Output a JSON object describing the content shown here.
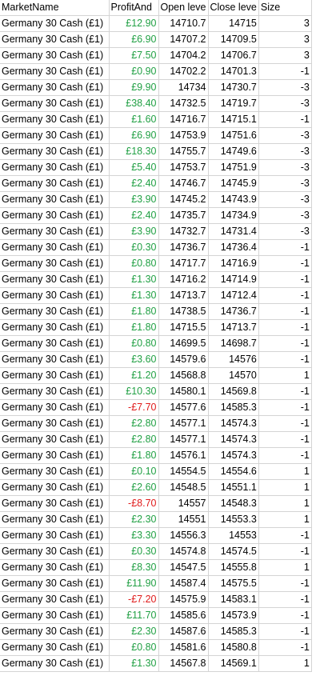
{
  "headers": [
    "MarketName",
    "ProfitAnd",
    "Open leve",
    "Close leve",
    "Size"
  ],
  "colors": {
    "positive": "#21a044",
    "negative": "#e01b1b",
    "text": "#000000",
    "grid": "#d4d4d4"
  },
  "rows": [
    [
      "Germany 30 Cash (£1)",
      "£12.90",
      "14710.7",
      "14715",
      "3"
    ],
    [
      "Germany 30 Cash (£1)",
      "£6.90",
      "14707.2",
      "14709.5",
      "3"
    ],
    [
      "Germany 30 Cash (£1)",
      "£7.50",
      "14704.2",
      "14706.7",
      "3"
    ],
    [
      "Germany 30 Cash (£1)",
      "£0.90",
      "14702.2",
      "14701.3",
      "-1"
    ],
    [
      "Germany 30 Cash (£1)",
      "£9.90",
      "14734",
      "14730.7",
      "-3"
    ],
    [
      "Germany 30 Cash (£1)",
      "£38.40",
      "14732.5",
      "14719.7",
      "-3"
    ],
    [
      "Germany 30 Cash (£1)",
      "£1.60",
      "14716.7",
      "14715.1",
      "-1"
    ],
    [
      "Germany 30 Cash (£1)",
      "£6.90",
      "14753.9",
      "14751.6",
      "-3"
    ],
    [
      "Germany 30 Cash (£1)",
      "£18.30",
      "14755.7",
      "14749.6",
      "-3"
    ],
    [
      "Germany 30 Cash (£1)",
      "£5.40",
      "14753.7",
      "14751.9",
      "-3"
    ],
    [
      "Germany 30 Cash (£1)",
      "£2.40",
      "14746.7",
      "14745.9",
      "-3"
    ],
    [
      "Germany 30 Cash (£1)",
      "£3.90",
      "14745.2",
      "14743.9",
      "-3"
    ],
    [
      "Germany 30 Cash (£1)",
      "£2.40",
      "14735.7",
      "14734.9",
      "-3"
    ],
    [
      "Germany 30 Cash (£1)",
      "£3.90",
      "14732.7",
      "14731.4",
      "-3"
    ],
    [
      "Germany 30 Cash (£1)",
      "£0.30",
      "14736.7",
      "14736.4",
      "-1"
    ],
    [
      "Germany 30 Cash (£1)",
      "£0.80",
      "14717.7",
      "14716.9",
      "-1"
    ],
    [
      "Germany 30 Cash (£1)",
      "£1.30",
      "14716.2",
      "14714.9",
      "-1"
    ],
    [
      "Germany 30 Cash (£1)",
      "£1.30",
      "14713.7",
      "14712.4",
      "-1"
    ],
    [
      "Germany 30 Cash (£1)",
      "£1.80",
      "14738.5",
      "14736.7",
      "-1"
    ],
    [
      "Germany 30 Cash (£1)",
      "£1.80",
      "14715.5",
      "14713.7",
      "-1"
    ],
    [
      "Germany 30 Cash (£1)",
      "£0.80",
      "14699.5",
      "14698.7",
      "-1"
    ],
    [
      "Germany 30 Cash (£1)",
      "£3.60",
      "14579.6",
      "14576",
      "-1"
    ],
    [
      "Germany 30 Cash (£1)",
      "£1.20",
      "14568.8",
      "14570",
      "1"
    ],
    [
      "Germany 30 Cash (£1)",
      "£10.30",
      "14580.1",
      "14569.8",
      "-1"
    ],
    [
      "Germany 30 Cash (£1)",
      "-£7.70",
      "14577.6",
      "14585.3",
      "-1"
    ],
    [
      "Germany 30 Cash (£1)",
      "£2.80",
      "14577.1",
      "14574.3",
      "-1"
    ],
    [
      "Germany 30 Cash (£1)",
      "£2.80",
      "14577.1",
      "14574.3",
      "-1"
    ],
    [
      "Germany 30 Cash (£1)",
      "£1.80",
      "14576.1",
      "14574.3",
      "-1"
    ],
    [
      "Germany 30 Cash (£1)",
      "£0.10",
      "14554.5",
      "14554.6",
      "1"
    ],
    [
      "Germany 30 Cash (£1)",
      "£2.60",
      "14548.5",
      "14551.1",
      "1"
    ],
    [
      "Germany 30 Cash (£1)",
      "-£8.70",
      "14557",
      "14548.3",
      "1"
    ],
    [
      "Germany 30 Cash (£1)",
      "£2.30",
      "14551",
      "14553.3",
      "1"
    ],
    [
      "Germany 30 Cash (£1)",
      "£3.30",
      "14556.3",
      "14553",
      "-1"
    ],
    [
      "Germany 30 Cash (£1)",
      "£0.30",
      "14574.8",
      "14574.5",
      "-1"
    ],
    [
      "Germany 30 Cash (£1)",
      "£8.30",
      "14547.5",
      "14555.8",
      "1"
    ],
    [
      "Germany 30 Cash (£1)",
      "£11.90",
      "14587.4",
      "14575.5",
      "-1"
    ],
    [
      "Germany 30 Cash (£1)",
      "-£7.20",
      "14575.9",
      "14583.1",
      "-1"
    ],
    [
      "Germany 30 Cash (£1)",
      "£11.70",
      "14585.6",
      "14573.9",
      "-1"
    ],
    [
      "Germany 30 Cash (£1)",
      "£2.30",
      "14587.6",
      "14585.3",
      "-1"
    ],
    [
      "Germany 30 Cash (£1)",
      "£0.80",
      "14581.6",
      "14580.8",
      "-1"
    ],
    [
      "Germany 30 Cash (£1)",
      "£1.30",
      "14567.8",
      "14569.1",
      "1"
    ]
  ]
}
